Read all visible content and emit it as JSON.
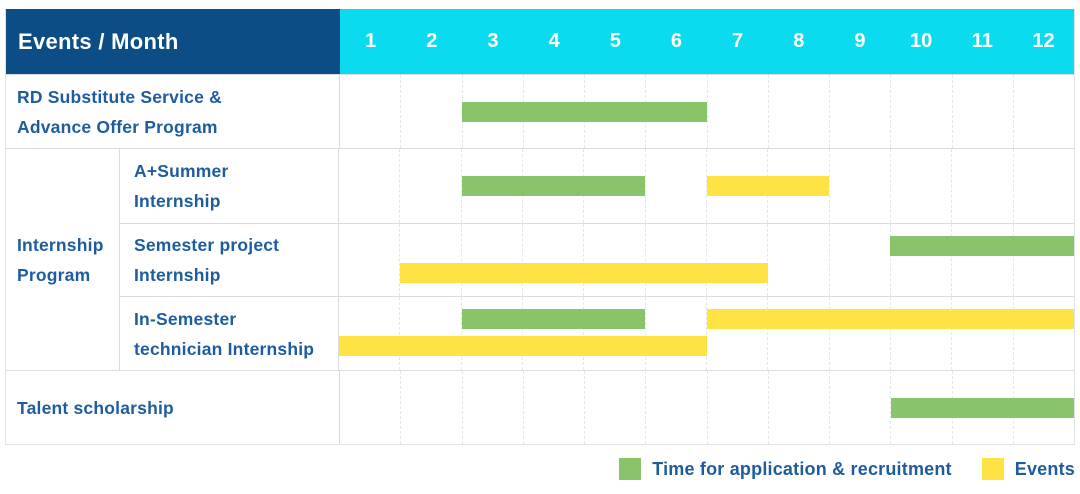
{
  "palette": {
    "header_navy": "#0b4d84",
    "header_cyan": "#0bdbee",
    "bar_green": "#8ac46a",
    "bar_yellow": "#ffe345",
    "label_blue": "#1e5c9e",
    "grid_solid": "#d9dce0",
    "grid_dashed": "#e4e7ea"
  },
  "header": {
    "title": "Events / Month",
    "months": [
      "1",
      "2",
      "3",
      "4",
      "5",
      "6",
      "7",
      "8",
      "9",
      "10",
      "11",
      "12"
    ]
  },
  "legend": {
    "items": [
      {
        "label": "Time for application & recruitment",
        "color_key": "green",
        "swatch_color": "#8ac46a"
      },
      {
        "label": "Events",
        "color_key": "yellow",
        "swatch_color": "#ffe345"
      }
    ]
  },
  "chart_data": {
    "type": "gantt",
    "title": "Events / Month",
    "x_axis": {
      "label": "Month",
      "ticks": [
        "1",
        "2",
        "3",
        "4",
        "5",
        "6",
        "7",
        "8",
        "9",
        "10",
        "11",
        "12"
      ],
      "range": [
        1,
        12
      ]
    },
    "groups": {
      "Internship Program": {
        "label_lines": [
          "Internship",
          "Program"
        ]
      }
    },
    "rows": [
      {
        "group": null,
        "label": "RD Substitute Service & Advance Offer Program",
        "label_lines": [
          "RD Substitute Service &",
          "Advance Offer Program"
        ],
        "bars": [
          {
            "series": "Time for application & recruitment",
            "color_key": "green",
            "start_month": 3,
            "end_month": 6,
            "lane": "center"
          }
        ]
      },
      {
        "group": "Internship Program",
        "label": "A+Summer Internship",
        "label_lines": [
          "A+Summer",
          "Internship"
        ],
        "bars": [
          {
            "series": "Time for application & recruitment",
            "color_key": "green",
            "start_month": 3,
            "end_month": 5,
            "lane": "center"
          },
          {
            "series": "Events",
            "color_key": "yellow",
            "start_month": 7,
            "end_month": 8,
            "lane": "center"
          }
        ]
      },
      {
        "group": "Internship Program",
        "label": "Semester project Internship",
        "label_lines": [
          "Semester project",
          "Internship"
        ],
        "bars": [
          {
            "series": "Time for application & recruitment",
            "color_key": "green",
            "start_month": 10,
            "end_month": 12,
            "lane": "upper"
          },
          {
            "series": "Events",
            "color_key": "yellow",
            "start_month": 2,
            "end_month": 7,
            "lane": "lower"
          }
        ]
      },
      {
        "group": "Internship Program",
        "label": "In-Semester technician Internship",
        "label_lines": [
          "In-Semester",
          "technician Internship"
        ],
        "bars": [
          {
            "series": "Time for application & recruitment",
            "color_key": "green",
            "start_month": 3,
            "end_month": 5,
            "lane": "upper"
          },
          {
            "series": "Events",
            "color_key": "yellow",
            "start_month": 7,
            "end_month": 12,
            "lane": "upper"
          },
          {
            "series": "Events",
            "color_key": "yellow",
            "start_month": 1,
            "end_month": 6,
            "lane": "lower"
          }
        ]
      },
      {
        "group": null,
        "label": "Talent scholarship",
        "label_lines": [
          "Talent scholarship"
        ],
        "bars": [
          {
            "series": "Time for application & recruitment",
            "color_key": "green",
            "start_month": 10,
            "end_month": 12,
            "lane": "center"
          }
        ]
      }
    ]
  }
}
